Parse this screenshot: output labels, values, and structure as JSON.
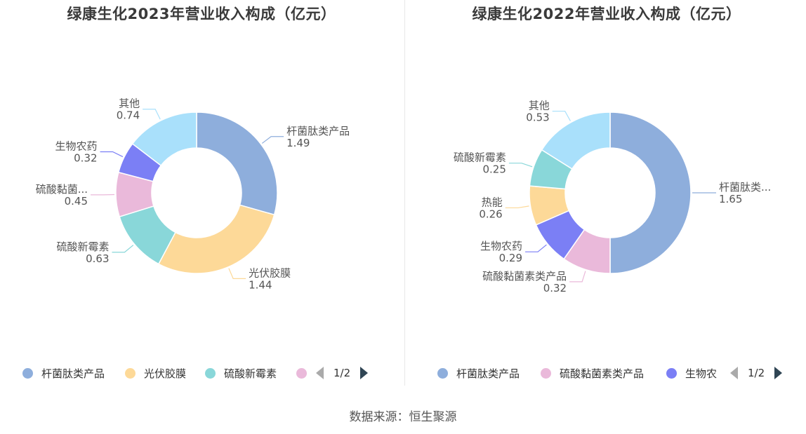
{
  "source": "数据来源：恒生聚源",
  "chart_data": [
    {
      "type": "pie",
      "title": "绿康生化2023年营业收入构成（亿元）",
      "slices": [
        {
          "name": "杆菌肽类产品",
          "label": "杆菌肽类产品",
          "value": 1.49,
          "color": "#8eaedc"
        },
        {
          "name": "光伏胶膜",
          "label": "光伏胶膜",
          "value": 1.44,
          "color": "#fdd998"
        },
        {
          "name": "硫酸新霉素",
          "label": "硫酸新霉素",
          "value": 0.63,
          "color": "#89d7d9"
        },
        {
          "name": "硫酸黏菌素类产品",
          "label": "硫酸黏菌...",
          "value": 0.45,
          "color": "#eab9da"
        },
        {
          "name": "生物农药",
          "label": "生物农药",
          "value": 0.32,
          "color": "#7b7ff5"
        },
        {
          "name": "其他",
          "label": "其他",
          "value": 0.74,
          "color": "#a9e0fb"
        }
      ],
      "legend": {
        "items": [
          "杆菌肽类产品",
          "光伏胶膜",
          "硫酸新霉素",
          ""
        ],
        "page": "1/2"
      }
    },
    {
      "type": "pie",
      "title": "绿康生化2022年营业收入构成（亿元）",
      "slices": [
        {
          "name": "杆菌肽类产品",
          "label": "杆菌肽类...",
          "value": 1.65,
          "color": "#8eaedc"
        },
        {
          "name": "硫酸黏菌素类产品",
          "label": "硫酸黏菌素类产品",
          "value": 0.32,
          "color": "#eab9da"
        },
        {
          "name": "生物农药",
          "label": "生物农药",
          "value": 0.29,
          "color": "#7b7ff5"
        },
        {
          "name": "热能",
          "label": "热能",
          "value": 0.26,
          "color": "#fdd998"
        },
        {
          "name": "硫酸新霉素",
          "label": "硫酸新霉素",
          "value": 0.25,
          "color": "#89d7d9"
        },
        {
          "name": "其他",
          "label": "其他",
          "value": 0.53,
          "color": "#a9e0fb"
        }
      ],
      "legend": {
        "items": [
          "杆菌肽类产品",
          "硫酸黏菌素类产品",
          "生物农"
        ],
        "page": "1/2"
      }
    }
  ]
}
